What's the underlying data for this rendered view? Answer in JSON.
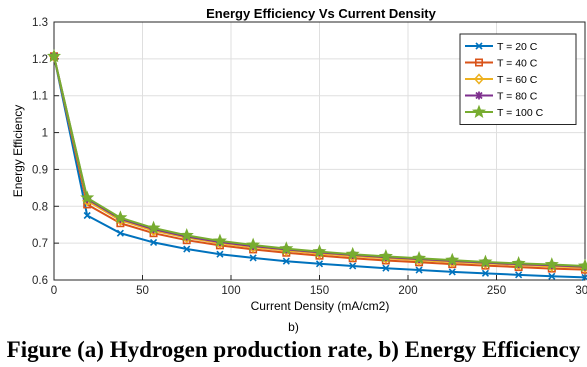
{
  "chart_data": {
    "type": "line",
    "title": "Energy Efficiency Vs Current Density",
    "xlabel": "Current Density (mA/cm2)",
    "ylabel": "Energy Efficiency",
    "xlim": [
      0,
      300
    ],
    "ylim": [
      0.6,
      1.3
    ],
    "xticks": [
      "0",
      "50",
      "100",
      "150",
      "200",
      "250",
      "300"
    ],
    "yticks": [
      "0.6",
      "0.7",
      "0.8",
      "0.9",
      "1",
      "1.1",
      "1.2",
      "1.3"
    ],
    "grid": true,
    "legend_position": "top-right",
    "x": [
      0,
      18.75,
      37.5,
      56.25,
      75,
      93.75,
      112.5,
      131.25,
      150,
      168.75,
      187.5,
      206.25,
      225,
      243.75,
      262.5,
      281.25,
      300
    ],
    "series": [
      {
        "name": "T = 20 C",
        "color": "#0072bd",
        "marker": "x",
        "values": [
          1.207,
          0.775,
          0.727,
          0.702,
          0.684,
          0.67,
          0.66,
          0.651,
          0.644,
          0.638,
          0.632,
          0.627,
          0.622,
          0.618,
          0.614,
          0.61,
          0.607
        ]
      },
      {
        "name": "T = 40 C",
        "color": "#d95319",
        "marker": "square",
        "values": [
          1.207,
          0.805,
          0.754,
          0.727,
          0.708,
          0.694,
          0.683,
          0.674,
          0.666,
          0.659,
          0.653,
          0.648,
          0.643,
          0.639,
          0.635,
          0.631,
          0.628
        ]
      },
      {
        "name": "T = 60 C",
        "color": "#edb120",
        "marker": "diamond",
        "values": [
          1.207,
          0.815,
          0.762,
          0.734,
          0.715,
          0.7,
          0.689,
          0.68,
          0.672,
          0.665,
          0.659,
          0.654,
          0.649,
          0.645,
          0.641,
          0.637,
          0.634
        ]
      },
      {
        "name": "T = 80 C",
        "color": "#7e2f8e",
        "marker": "star",
        "values": [
          1.207,
          0.82,
          0.766,
          0.738,
          0.718,
          0.703,
          0.692,
          0.683,
          0.675,
          0.668,
          0.662,
          0.657,
          0.652,
          0.647,
          0.643,
          0.64,
          0.636
        ]
      },
      {
        "name": "T = 100 C",
        "color": "#77ac30",
        "marker": "pentagram",
        "values": [
          1.207,
          0.823,
          0.769,
          0.741,
          0.721,
          0.706,
          0.695,
          0.685,
          0.677,
          0.67,
          0.664,
          0.659,
          0.654,
          0.649,
          0.645,
          0.642,
          0.638
        ]
      }
    ],
    "sublabel": "b)",
    "caption": "Figure (a) Hydrogen production rate, b) Energy Efficiency"
  }
}
